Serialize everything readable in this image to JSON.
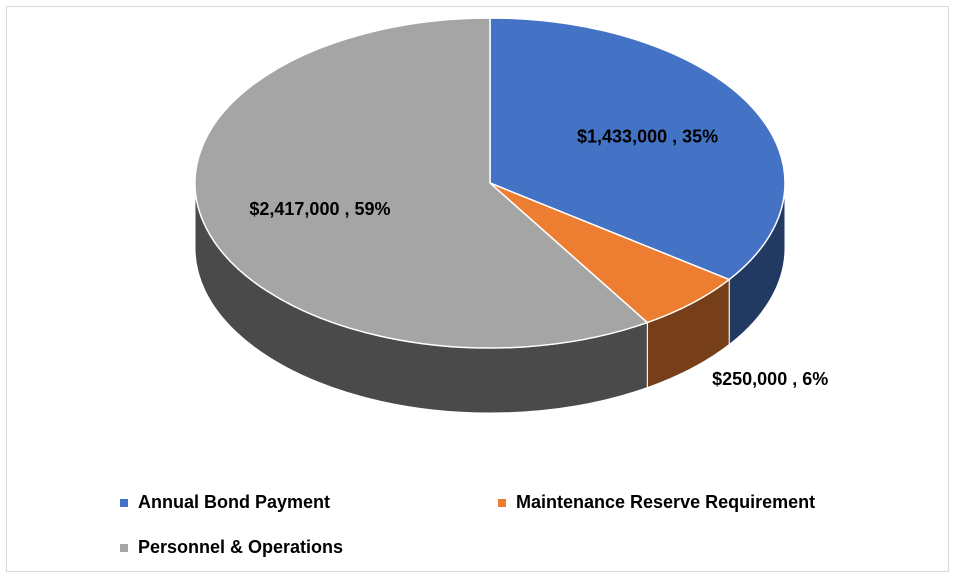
{
  "chart_data": {
    "type": "pie3d",
    "categories": [
      "Annual Bond Payment",
      "Maintenance Reserve Requirement",
      "Personnel & Operations"
    ],
    "values": [
      1433000,
      250000,
      2417000
    ],
    "value_labels": [
      "$1,433,000 , 35%",
      "$250,000 , 6%",
      "$2,417,000 , 59%"
    ],
    "colors": [
      "#4472c4",
      "#ed7d31",
      "#a5a5a5"
    ],
    "legend": "bottom"
  }
}
